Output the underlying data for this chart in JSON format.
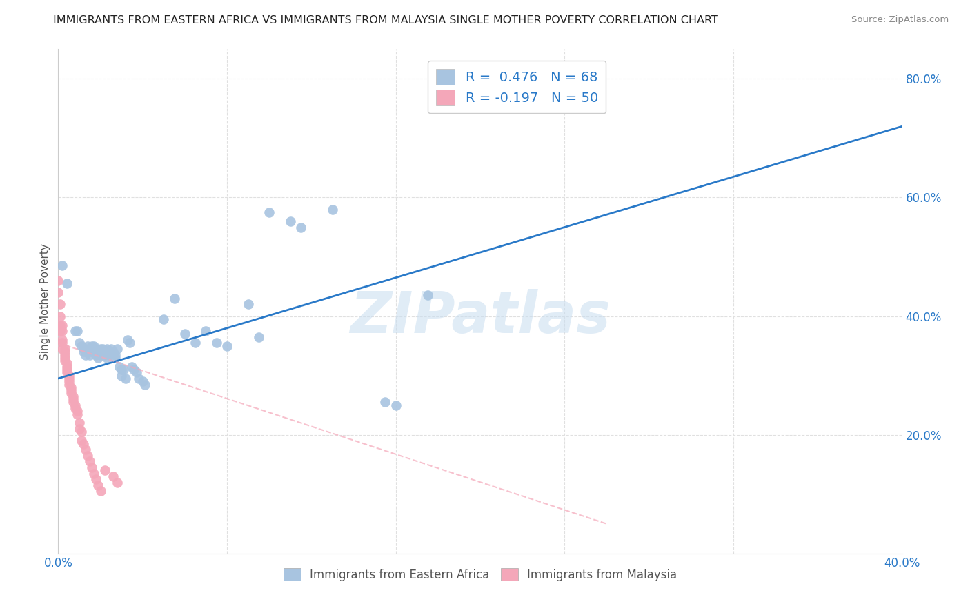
{
  "title": "IMMIGRANTS FROM EASTERN AFRICA VS IMMIGRANTS FROM MALAYSIA SINGLE MOTHER POVERTY CORRELATION CHART",
  "source": "Source: ZipAtlas.com",
  "ylabel": "Single Mother Poverty",
  "xlim": [
    0.0,
    0.4
  ],
  "ylim": [
    0.0,
    0.85
  ],
  "xticks": [
    0.0,
    0.08,
    0.16,
    0.24,
    0.32,
    0.4
  ],
  "ytick_positions": [
    0.2,
    0.4,
    0.6,
    0.8
  ],
  "blue_R": 0.476,
  "blue_N": 68,
  "pink_R": -0.197,
  "pink_N": 50,
  "blue_color": "#a8c4e0",
  "pink_color": "#f4a7b9",
  "blue_line_color": "#2979c8",
  "pink_line_color": "#f4a7b9",
  "blue_scatter": [
    [
      0.002,
      0.485
    ],
    [
      0.004,
      0.455
    ],
    [
      0.008,
      0.375
    ],
    [
      0.009,
      0.375
    ],
    [
      0.01,
      0.355
    ],
    [
      0.011,
      0.35
    ],
    [
      0.012,
      0.345
    ],
    [
      0.012,
      0.34
    ],
    [
      0.013,
      0.345
    ],
    [
      0.013,
      0.34
    ],
    [
      0.013,
      0.335
    ],
    [
      0.014,
      0.35
    ],
    [
      0.014,
      0.34
    ],
    [
      0.015,
      0.345
    ],
    [
      0.015,
      0.335
    ],
    [
      0.016,
      0.35
    ],
    [
      0.016,
      0.345
    ],
    [
      0.016,
      0.34
    ],
    [
      0.017,
      0.35
    ],
    [
      0.017,
      0.34
    ],
    [
      0.018,
      0.345
    ],
    [
      0.018,
      0.335
    ],
    [
      0.019,
      0.34
    ],
    [
      0.019,
      0.33
    ],
    [
      0.02,
      0.345
    ],
    [
      0.02,
      0.335
    ],
    [
      0.021,
      0.345
    ],
    [
      0.021,
      0.34
    ],
    [
      0.022,
      0.34
    ],
    [
      0.022,
      0.335
    ],
    [
      0.023,
      0.345
    ],
    [
      0.023,
      0.33
    ],
    [
      0.024,
      0.34
    ],
    [
      0.024,
      0.335
    ],
    [
      0.025,
      0.345
    ],
    [
      0.026,
      0.34
    ],
    [
      0.027,
      0.335
    ],
    [
      0.027,
      0.33
    ],
    [
      0.028,
      0.345
    ],
    [
      0.029,
      0.315
    ],
    [
      0.03,
      0.31
    ],
    [
      0.03,
      0.3
    ],
    [
      0.031,
      0.31
    ],
    [
      0.032,
      0.295
    ],
    [
      0.033,
      0.36
    ],
    [
      0.034,
      0.355
    ],
    [
      0.035,
      0.315
    ],
    [
      0.036,
      0.31
    ],
    [
      0.037,
      0.305
    ],
    [
      0.038,
      0.295
    ],
    [
      0.04,
      0.29
    ],
    [
      0.041,
      0.285
    ],
    [
      0.05,
      0.395
    ],
    [
      0.055,
      0.43
    ],
    [
      0.06,
      0.37
    ],
    [
      0.065,
      0.355
    ],
    [
      0.07,
      0.375
    ],
    [
      0.075,
      0.355
    ],
    [
      0.08,
      0.35
    ],
    [
      0.09,
      0.42
    ],
    [
      0.095,
      0.365
    ],
    [
      0.1,
      0.575
    ],
    [
      0.11,
      0.56
    ],
    [
      0.115,
      0.55
    ],
    [
      0.13,
      0.58
    ],
    [
      0.155,
      0.255
    ],
    [
      0.16,
      0.25
    ],
    [
      0.175,
      0.435
    ]
  ],
  "pink_scatter": [
    [
      0.0,
      0.46
    ],
    [
      0.0,
      0.44
    ],
    [
      0.001,
      0.42
    ],
    [
      0.001,
      0.4
    ],
    [
      0.001,
      0.385
    ],
    [
      0.001,
      0.375
    ],
    [
      0.002,
      0.385
    ],
    [
      0.002,
      0.375
    ],
    [
      0.002,
      0.36
    ],
    [
      0.002,
      0.355
    ],
    [
      0.002,
      0.345
    ],
    [
      0.003,
      0.345
    ],
    [
      0.003,
      0.34
    ],
    [
      0.003,
      0.335
    ],
    [
      0.003,
      0.33
    ],
    [
      0.003,
      0.325
    ],
    [
      0.004,
      0.32
    ],
    [
      0.004,
      0.315
    ],
    [
      0.004,
      0.31
    ],
    [
      0.004,
      0.305
    ],
    [
      0.005,
      0.3
    ],
    [
      0.005,
      0.295
    ],
    [
      0.005,
      0.29
    ],
    [
      0.005,
      0.285
    ],
    [
      0.006,
      0.28
    ],
    [
      0.006,
      0.275
    ],
    [
      0.006,
      0.27
    ],
    [
      0.007,
      0.265
    ],
    [
      0.007,
      0.26
    ],
    [
      0.007,
      0.255
    ],
    [
      0.008,
      0.25
    ],
    [
      0.008,
      0.245
    ],
    [
      0.009,
      0.24
    ],
    [
      0.009,
      0.235
    ],
    [
      0.01,
      0.22
    ],
    [
      0.01,
      0.21
    ],
    [
      0.011,
      0.205
    ],
    [
      0.011,
      0.19
    ],
    [
      0.012,
      0.185
    ],
    [
      0.013,
      0.175
    ],
    [
      0.014,
      0.165
    ],
    [
      0.015,
      0.155
    ],
    [
      0.016,
      0.145
    ],
    [
      0.017,
      0.135
    ],
    [
      0.018,
      0.125
    ],
    [
      0.019,
      0.115
    ],
    [
      0.02,
      0.105
    ],
    [
      0.022,
      0.14
    ],
    [
      0.026,
      0.13
    ],
    [
      0.028,
      0.12
    ]
  ],
  "blue_trendline": [
    [
      0.0,
      0.295
    ],
    [
      0.4,
      0.72
    ]
  ],
  "pink_trendline": [
    [
      0.0,
      0.355
    ],
    [
      0.26,
      0.05
    ]
  ],
  "watermark_text": "ZIPatlas",
  "watermark_color": "#c8ddf0",
  "background_color": "#ffffff",
  "grid_color": "#e0e0e0",
  "legend1_label1": "R =  0.476   N = 68",
  "legend1_label2": "R = -0.197   N = 50",
  "legend2_label1": "Immigrants from Eastern Africa",
  "legend2_label2": "Immigrants from Malaysia",
  "tick_color": "#2979c8",
  "ylabel_color": "#555555",
  "title_color": "#222222",
  "source_color": "#888888"
}
